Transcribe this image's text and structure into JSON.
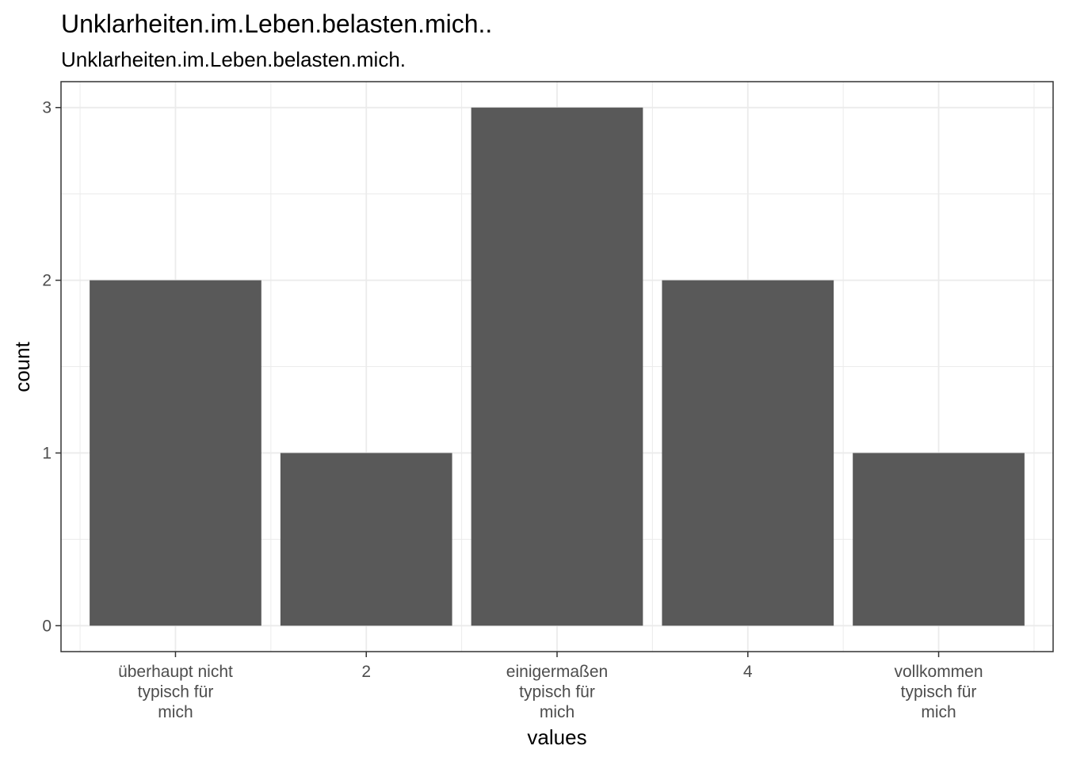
{
  "chart_data": {
    "type": "bar",
    "title": "Unklarheiten.im.Leben.belasten.mich..",
    "subtitle": "Unklarheiten.im.Leben.belasten.mich.",
    "xlabel": "values",
    "ylabel": "count",
    "categories": [
      [
        "überhaupt nicht",
        "typisch für",
        "mich"
      ],
      [
        "2"
      ],
      [
        "einigermaßen",
        "typisch für",
        "mich"
      ],
      [
        "4"
      ],
      [
        "vollkommen",
        "typisch für",
        "mich"
      ]
    ],
    "values": [
      2,
      1,
      3,
      2,
      1
    ],
    "ylim": [
      -0.15,
      3.15
    ],
    "yticks": [
      0,
      1,
      2,
      3
    ],
    "grid": true,
    "bar_color": "#595959",
    "grid_color": "#ebebeb",
    "panel_border_color": "#333333"
  }
}
